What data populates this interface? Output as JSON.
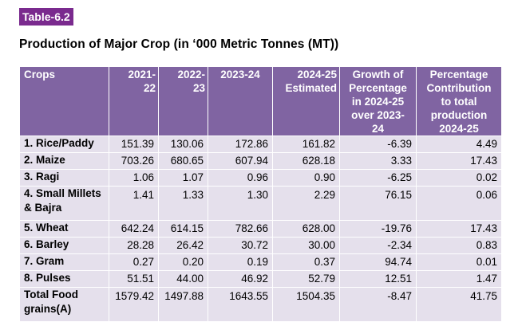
{
  "table_label": "Table-6.2",
  "title": "Production of Major Crop (in ‘000 Metric Tonnes (MT))",
  "headers": [
    "Crops",
    "2021-\n22",
    "2022-\n23",
    "2023-24",
    "2024-25\nEstimated",
    "Growth of\nPercentage\nin 2024-25\nover 2023-\n24",
    "Percentage\nContribution\nto total\nproduction\n2024-25"
  ],
  "rows": [
    {
      "crop": "1. Rice/Paddy",
      "v1": "151.39",
      "v2": "130.06",
      "v3": "172.86",
      "v4": "161.82",
      "growth": "-6.39",
      "contribution": "4.49"
    },
    {
      "crop": "2. Maize",
      "v1": "703.26",
      "v2": "680.65",
      "v3": "607.94",
      "v4": "628.18",
      "growth": "3.33",
      "contribution": "17.43"
    },
    {
      "crop": "3. Ragi",
      "v1": "1.06",
      "v2": "1.07",
      "v3": "0.96",
      "v4": "0.90",
      "growth": "-6.25",
      "contribution": "0.02"
    },
    {
      "crop": "4. Small Millets & Bajra",
      "v1": "1.41",
      "v2": "1.33",
      "v3": "1.30",
      "v4": "2.29",
      "growth": "76.15",
      "contribution": "0.06"
    },
    {
      "crop": "5. Wheat",
      "v1": "642.24",
      "v2": "614.15",
      "v3": "782.66",
      "v4": "628.00",
      "growth": "-19.76",
      "contribution": "17.43"
    },
    {
      "crop": "6. Barley",
      "v1": "28.28",
      "v2": "26.42",
      "v3": "30.72",
      "v4": "30.00",
      "growth": "-2.34",
      "contribution": "0.83"
    },
    {
      "crop": "7. Gram",
      "v1": "0.27",
      "v2": "0.20",
      "v3": "0.19",
      "v4": "0.37",
      "growth": "94.74",
      "contribution": "0.01"
    },
    {
      "crop": "8. Pulses",
      "v1": "51.51",
      "v2": "44.00",
      "v3": "46.92",
      "v4": "52.79",
      "growth": "12.51",
      "contribution": "1.47"
    },
    {
      "crop": "Total Food grains(A)",
      "v1": "1579.42",
      "v2": "1497.88",
      "v3": "1643.55",
      "v4": "1504.35",
      "growth": "-8.47",
      "contribution": "41.75"
    }
  ],
  "colors": {
    "label_bg": "#7a2a8e",
    "header_bg": "#8064a2",
    "row_bg": "#e5e0ec"
  }
}
